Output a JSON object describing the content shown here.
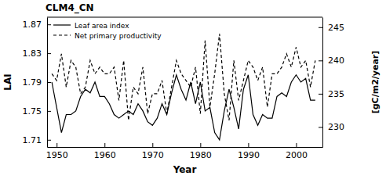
{
  "chart_data": {
    "type": "line",
    "title": "CLM4_CN",
    "x_label": "Year",
    "y_label": "LAI",
    "y2_label": "[gC/m2/year]",
    "x": [
      1949,
      1950,
      1951,
      1952,
      1953,
      1954,
      1955,
      1956,
      1957,
      1958,
      1959,
      1960,
      1961,
      1962,
      1963,
      1964,
      1965,
      1966,
      1967,
      1968,
      1969,
      1970,
      1971,
      1972,
      1973,
      1974,
      1975,
      1976,
      1977,
      1978,
      1979,
      1980,
      1981,
      1982,
      1983,
      1984,
      1985,
      1986,
      1987,
      1988,
      1989,
      1990,
      1991,
      1992,
      1993,
      1994,
      1995,
      1996,
      1997,
      1998,
      1999,
      2000,
      2001,
      2002,
      2003,
      2004
    ],
    "series": [
      {
        "name": "Leaf area index",
        "color": "#000000",
        "line_style": "solid",
        "values": [
          1.79,
          1.755,
          1.72,
          1.745,
          1.745,
          1.75,
          1.77,
          1.78,
          1.775,
          1.79,
          1.77,
          1.77,
          1.76,
          1.745,
          1.74,
          1.745,
          1.75,
          1.745,
          1.76,
          1.75,
          1.735,
          1.73,
          1.74,
          1.76,
          1.745,
          1.775,
          1.8,
          1.78,
          1.765,
          1.79,
          1.76,
          1.79,
          1.75,
          1.755,
          1.72,
          1.71,
          1.75,
          1.78,
          1.755,
          1.725,
          1.78,
          1.8,
          1.745,
          1.73,
          1.745,
          1.74,
          1.74,
          1.77,
          1.775,
          1.77,
          1.79,
          1.8,
          1.79,
          1.795,
          1.765,
          1.765
        ]
      },
      {
        "name": "Net primary productivity",
        "color": "#000000",
        "line_style": "dashed",
        "axis": "y2",
        "values": [
          238,
          237,
          241,
          236,
          240,
          239,
          235,
          236,
          240,
          238,
          239,
          238,
          238,
          239,
          234,
          240,
          231,
          236,
          235,
          239,
          232,
          235,
          235,
          237,
          232,
          236,
          240,
          238,
          237,
          236,
          239,
          232,
          243,
          233,
          238,
          244,
          235,
          231,
          240,
          234,
          237,
          240,
          239,
          237,
          239,
          233,
          238,
          238,
          239,
          241,
          239,
          242,
          239,
          240,
          236,
          240
        ]
      }
    ],
    "xlim": [
      1948,
      2005.5
    ],
    "xticks": [
      1950,
      1960,
      1970,
      1980,
      1990,
      2000
    ],
    "ylim": [
      1.7,
      1.88
    ],
    "yticks": [
      1.71,
      1.75,
      1.79,
      1.83,
      1.87
    ],
    "y2lim": [
      227,
      246.5
    ],
    "y2ticks": [
      230,
      235,
      240,
      245
    ],
    "legend": "upper left"
  }
}
